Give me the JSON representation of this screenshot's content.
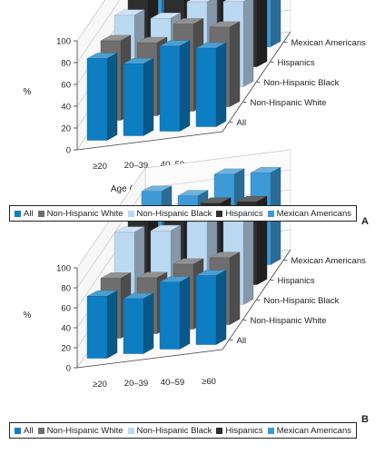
{
  "colors": {
    "all": "#0e7ec2",
    "non_hispanic_white": "#6e6e6e",
    "non_hispanic_black": "#bcd9f2",
    "hispanics": "#2e2e2e",
    "mexican_americans": "#3d9ad6"
  },
  "chart_data": [
    {
      "type": "bar",
      "panel_label": "A",
      "ylabel": "%",
      "xlabel": "Age (y)",
      "ylim": [
        0,
        100
      ],
      "y_ticks": [
        0,
        20,
        40,
        60,
        80,
        100
      ],
      "categories": [
        "≥20",
        "20–39",
        "40–59",
        "≥60"
      ],
      "depth_labels": [
        "All",
        "Non-Hispanic White",
        "Non-Hispanic Black",
        "Hispanics",
        "Mexican Americans"
      ],
      "legend_position": "bottom",
      "series": [
        {
          "name": "All",
          "values": [
            75,
            66,
            78,
            72
          ]
        },
        {
          "name": "Non-Hispanic White",
          "values": [
            73,
            67,
            80,
            73
          ]
        },
        {
          "name": "Non-Hispanic Black",
          "values": [
            78,
            71,
            82,
            78
          ]
        },
        {
          "name": "Hispanics",
          "values": [
            89,
            84,
            94,
            92
          ]
        },
        {
          "name": "Mexican Americans",
          "values": [
            90,
            87,
            95,
            92
          ]
        }
      ]
    },
    {
      "type": "bar",
      "panel_label": "B",
      "ylabel": "%",
      "xlabel": "",
      "ylim": [
        0,
        100
      ],
      "y_ticks": [
        0,
        20,
        40,
        60,
        80,
        100
      ],
      "categories": [
        "≥20",
        "20–39",
        "40–59",
        "≥60"
      ],
      "depth_labels": [
        "All",
        "Non-Hispanic White",
        "Non-Hispanic Black",
        "Hispanics",
        "Mexican Americans"
      ],
      "legend_position": "bottom",
      "series": [
        {
          "name": "All",
          "values": [
            62,
            55,
            67,
            69
          ]
        },
        {
          "name": "Non-Hispanic White",
          "values": [
            60,
            56,
            65,
            67
          ]
        },
        {
          "name": "Non-Hispanic Black",
          "values": [
            86,
            83,
            87,
            92
          ]
        },
        {
          "name": "Hispanics",
          "values": [
            82,
            74,
            86,
            83
          ]
        },
        {
          "name": "Mexican Americans",
          "values": [
            87,
            78,
            95,
            92
          ]
        }
      ]
    }
  ]
}
